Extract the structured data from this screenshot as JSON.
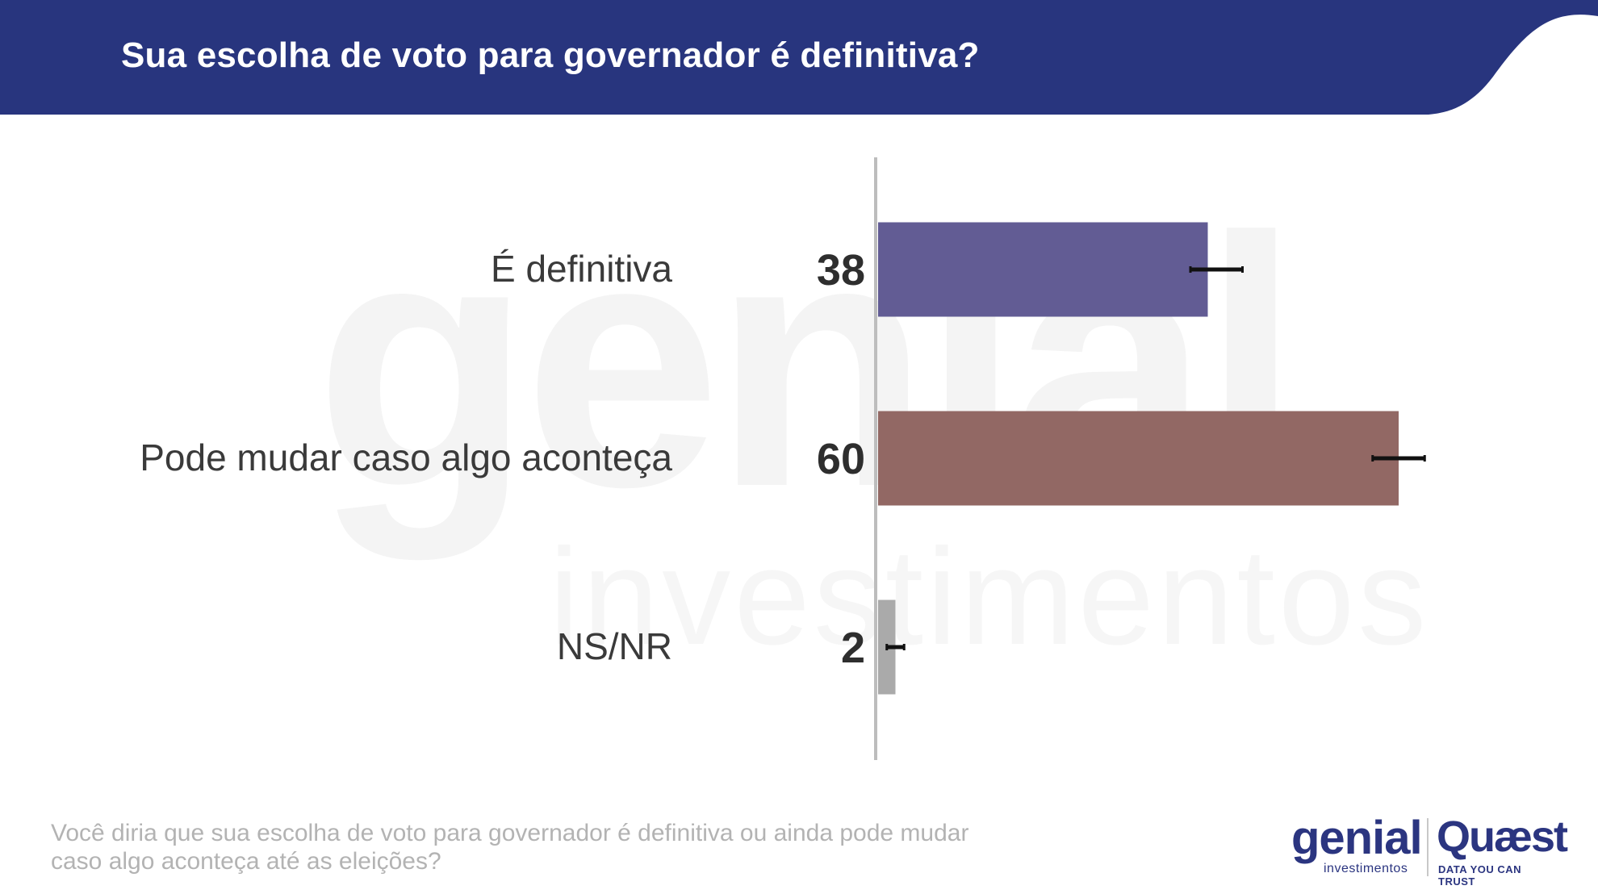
{
  "header": {
    "title": "Sua escolha de voto para governador é definitiva?",
    "background_color": "#28357e"
  },
  "watermark": {
    "big": "genial",
    "small": "investimentos"
  },
  "chart_data": {
    "type": "bar",
    "orientation": "horizontal",
    "title": "Sua escolha de voto para governador é definitiva?",
    "categories": [
      "É definitiva",
      "Pode mudar caso algo aconteça",
      "NS/NR"
    ],
    "values": [
      38,
      60,
      2
    ],
    "error_bars": [
      {
        "low": 36,
        "high": 42
      },
      {
        "low": 57,
        "high": 63
      },
      {
        "low": 1,
        "high": 3
      }
    ],
    "colors": [
      "#625c94",
      "#926864",
      "#aaaaaa"
    ],
    "xlim": [
      0,
      100
    ],
    "unit": "%",
    "xlabel": "",
    "ylabel": ""
  },
  "footnote": "Você diria que sua escolha de voto para governador é definitiva ou ainda pode mudar caso algo aconteça até as eleições?",
  "logos": {
    "genial": "genial",
    "genial_sub": "investimentos",
    "quaest": "Quæst",
    "quaest_sub": "DATA YOU CAN TRUST",
    "brand_color": "#2b3580"
  }
}
